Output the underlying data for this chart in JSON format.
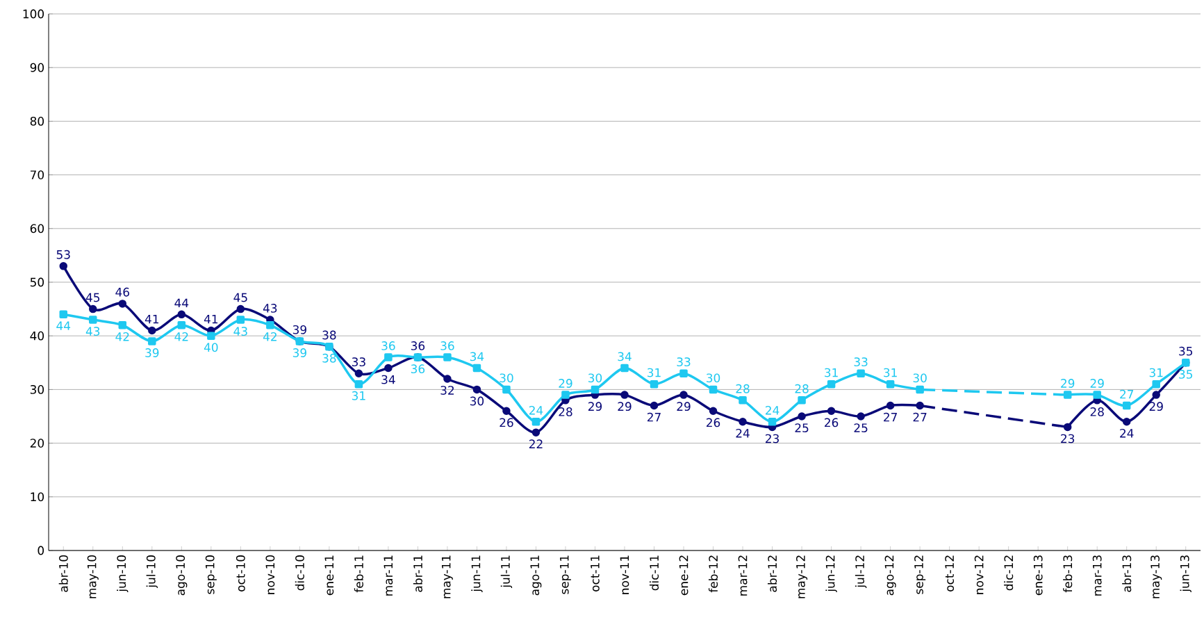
{
  "chart_data": {
    "type": "line",
    "categories": [
      "abr-10",
      "may-10",
      "jun-10",
      "jul-10",
      "ago-10",
      "sep-10",
      "oct-10",
      "nov-10",
      "dic-10",
      "ene-11",
      "feb-11",
      "mar-11",
      "abr-11",
      "may-11",
      "jun-11",
      "jul-11",
      "ago-11",
      "sep-11",
      "oct-11",
      "nov-11",
      "dic-11",
      "ene-12",
      "feb-12",
      "mar-12",
      "abr-12",
      "may-12",
      "jun-12",
      "jul-12",
      "ago-12",
      "sep-12",
      "oct-12",
      "nov-12",
      "dic-12",
      "ene-13",
      "feb-13",
      "mar-13",
      "abr-13",
      "may-13",
      "jun-13"
    ],
    "series": [
      {
        "color": "#0a0a78",
        "marker": "circle",
        "values": [
          53,
          45,
          46,
          41,
          44,
          41,
          45,
          43,
          39,
          38,
          33,
          34,
          36,
          32,
          30,
          26,
          22,
          28,
          29,
          29,
          27,
          29,
          26,
          24,
          23,
          25,
          26,
          25,
          27,
          27,
          null,
          null,
          null,
          null,
          23,
          28,
          24,
          29,
          35
        ]
      },
      {
        "color": "#1ec8f0",
        "marker": "square",
        "values": [
          44,
          43,
          42,
          39,
          42,
          40,
          43,
          42,
          39,
          38,
          31,
          36,
          36,
          36,
          34,
          30,
          24,
          29,
          30,
          34,
          31,
          33,
          30,
          28,
          24,
          28,
          31,
          33,
          31,
          30,
          null,
          null,
          null,
          null,
          29,
          29,
          27,
          31,
          35
        ]
      }
    ],
    "ylim": [
      0,
      100
    ],
    "yticks": [
      0,
      10,
      20,
      30,
      40,
      50,
      60,
      70,
      80,
      90,
      100
    ],
    "grid": "y",
    "data_labels": true
  }
}
